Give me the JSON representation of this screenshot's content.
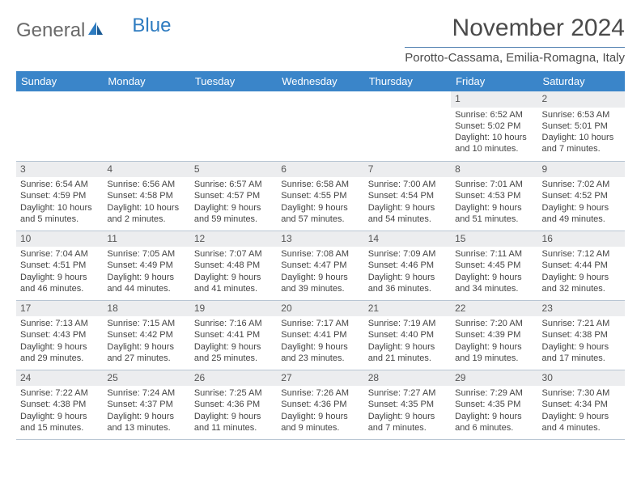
{
  "brand": {
    "part1": "General",
    "part2": "Blue"
  },
  "title": "November 2024",
  "location": "Porotto-Cassama, Emilia-Romagna, Italy",
  "accent_color": "#3a85c9",
  "dayHeaders": [
    "Sunday",
    "Monday",
    "Tuesday",
    "Wednesday",
    "Thursday",
    "Friday",
    "Saturday"
  ],
  "weeks": [
    [
      {
        "n": "",
        "sr": "",
        "ss": "",
        "dl": ""
      },
      {
        "n": "",
        "sr": "",
        "ss": "",
        "dl": ""
      },
      {
        "n": "",
        "sr": "",
        "ss": "",
        "dl": ""
      },
      {
        "n": "",
        "sr": "",
        "ss": "",
        "dl": ""
      },
      {
        "n": "",
        "sr": "",
        "ss": "",
        "dl": ""
      },
      {
        "n": "1",
        "sr": "Sunrise: 6:52 AM",
        "ss": "Sunset: 5:02 PM",
        "dl": "Daylight: 10 hours and 10 minutes."
      },
      {
        "n": "2",
        "sr": "Sunrise: 6:53 AM",
        "ss": "Sunset: 5:01 PM",
        "dl": "Daylight: 10 hours and 7 minutes."
      }
    ],
    [
      {
        "n": "3",
        "sr": "Sunrise: 6:54 AM",
        "ss": "Sunset: 4:59 PM",
        "dl": "Daylight: 10 hours and 5 minutes."
      },
      {
        "n": "4",
        "sr": "Sunrise: 6:56 AM",
        "ss": "Sunset: 4:58 PM",
        "dl": "Daylight: 10 hours and 2 minutes."
      },
      {
        "n": "5",
        "sr": "Sunrise: 6:57 AM",
        "ss": "Sunset: 4:57 PM",
        "dl": "Daylight: 9 hours and 59 minutes."
      },
      {
        "n": "6",
        "sr": "Sunrise: 6:58 AM",
        "ss": "Sunset: 4:55 PM",
        "dl": "Daylight: 9 hours and 57 minutes."
      },
      {
        "n": "7",
        "sr": "Sunrise: 7:00 AM",
        "ss": "Sunset: 4:54 PM",
        "dl": "Daylight: 9 hours and 54 minutes."
      },
      {
        "n": "8",
        "sr": "Sunrise: 7:01 AM",
        "ss": "Sunset: 4:53 PM",
        "dl": "Daylight: 9 hours and 51 minutes."
      },
      {
        "n": "9",
        "sr": "Sunrise: 7:02 AM",
        "ss": "Sunset: 4:52 PM",
        "dl": "Daylight: 9 hours and 49 minutes."
      }
    ],
    [
      {
        "n": "10",
        "sr": "Sunrise: 7:04 AM",
        "ss": "Sunset: 4:51 PM",
        "dl": "Daylight: 9 hours and 46 minutes."
      },
      {
        "n": "11",
        "sr": "Sunrise: 7:05 AM",
        "ss": "Sunset: 4:49 PM",
        "dl": "Daylight: 9 hours and 44 minutes."
      },
      {
        "n": "12",
        "sr": "Sunrise: 7:07 AM",
        "ss": "Sunset: 4:48 PM",
        "dl": "Daylight: 9 hours and 41 minutes."
      },
      {
        "n": "13",
        "sr": "Sunrise: 7:08 AM",
        "ss": "Sunset: 4:47 PM",
        "dl": "Daylight: 9 hours and 39 minutes."
      },
      {
        "n": "14",
        "sr": "Sunrise: 7:09 AM",
        "ss": "Sunset: 4:46 PM",
        "dl": "Daylight: 9 hours and 36 minutes."
      },
      {
        "n": "15",
        "sr": "Sunrise: 7:11 AM",
        "ss": "Sunset: 4:45 PM",
        "dl": "Daylight: 9 hours and 34 minutes."
      },
      {
        "n": "16",
        "sr": "Sunrise: 7:12 AM",
        "ss": "Sunset: 4:44 PM",
        "dl": "Daylight: 9 hours and 32 minutes."
      }
    ],
    [
      {
        "n": "17",
        "sr": "Sunrise: 7:13 AM",
        "ss": "Sunset: 4:43 PM",
        "dl": "Daylight: 9 hours and 29 minutes."
      },
      {
        "n": "18",
        "sr": "Sunrise: 7:15 AM",
        "ss": "Sunset: 4:42 PM",
        "dl": "Daylight: 9 hours and 27 minutes."
      },
      {
        "n": "19",
        "sr": "Sunrise: 7:16 AM",
        "ss": "Sunset: 4:41 PM",
        "dl": "Daylight: 9 hours and 25 minutes."
      },
      {
        "n": "20",
        "sr": "Sunrise: 7:17 AM",
        "ss": "Sunset: 4:41 PM",
        "dl": "Daylight: 9 hours and 23 minutes."
      },
      {
        "n": "21",
        "sr": "Sunrise: 7:19 AM",
        "ss": "Sunset: 4:40 PM",
        "dl": "Daylight: 9 hours and 21 minutes."
      },
      {
        "n": "22",
        "sr": "Sunrise: 7:20 AM",
        "ss": "Sunset: 4:39 PM",
        "dl": "Daylight: 9 hours and 19 minutes."
      },
      {
        "n": "23",
        "sr": "Sunrise: 7:21 AM",
        "ss": "Sunset: 4:38 PM",
        "dl": "Daylight: 9 hours and 17 minutes."
      }
    ],
    [
      {
        "n": "24",
        "sr": "Sunrise: 7:22 AM",
        "ss": "Sunset: 4:38 PM",
        "dl": "Daylight: 9 hours and 15 minutes."
      },
      {
        "n": "25",
        "sr": "Sunrise: 7:24 AM",
        "ss": "Sunset: 4:37 PM",
        "dl": "Daylight: 9 hours and 13 minutes."
      },
      {
        "n": "26",
        "sr": "Sunrise: 7:25 AM",
        "ss": "Sunset: 4:36 PM",
        "dl": "Daylight: 9 hours and 11 minutes."
      },
      {
        "n": "27",
        "sr": "Sunrise: 7:26 AM",
        "ss": "Sunset: 4:36 PM",
        "dl": "Daylight: 9 hours and 9 minutes."
      },
      {
        "n": "28",
        "sr": "Sunrise: 7:27 AM",
        "ss": "Sunset: 4:35 PM",
        "dl": "Daylight: 9 hours and 7 minutes."
      },
      {
        "n": "29",
        "sr": "Sunrise: 7:29 AM",
        "ss": "Sunset: 4:35 PM",
        "dl": "Daylight: 9 hours and 6 minutes."
      },
      {
        "n": "30",
        "sr": "Sunrise: 7:30 AM",
        "ss": "Sunset: 4:34 PM",
        "dl": "Daylight: 9 hours and 4 minutes."
      }
    ]
  ]
}
